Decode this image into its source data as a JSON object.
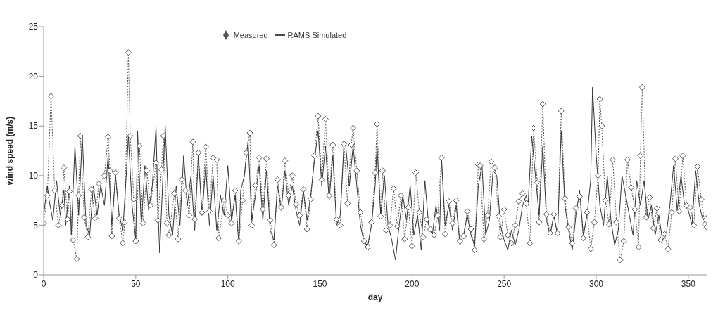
{
  "chart_data": {
    "type": "line",
    "xlabel": "day",
    "ylabel": "wind speed (m/s)",
    "xlim": [
      0,
      360
    ],
    "xticks": [
      0,
      50,
      100,
      150,
      200,
      250,
      300,
      350
    ],
    "ylim": [
      0,
      25
    ],
    "yticks": [
      0,
      5,
      10,
      15,
      20,
      25
    ],
    "grid": false,
    "legend": "top",
    "series": [
      {
        "name": "Measured",
        "color": "#555555",
        "marker": "diamond",
        "line_style": "dotted",
        "x": [
          0,
          2,
          4,
          6,
          8,
          10,
          11,
          13,
          14,
          16,
          18,
          19,
          20,
          22,
          24,
          26,
          28,
          30,
          33,
          35,
          36,
          37,
          39,
          41,
          43,
          44,
          46,
          47,
          49,
          50,
          52,
          54,
          56,
          58,
          61,
          62,
          64,
          65,
          67,
          68,
          71,
          73,
          75,
          77,
          79,
          81,
          82,
          84,
          86,
          88,
          90,
          92,
          94,
          95,
          98,
          100,
          102,
          104,
          106,
          108,
          110,
          112,
          113,
          115,
          117,
          119,
          121,
          123,
          125,
          127,
          129,
          131,
          133,
          135,
          137,
          139,
          141,
          143,
          145,
          147,
          149,
          151,
          153,
          155,
          157,
          159,
          161,
          163,
          165,
          167,
          168,
          170,
          172,
          174,
          176,
          178,
          180,
          181,
          183,
          184,
          186,
          188,
          190,
          192,
          194,
          196,
          198,
          200,
          202,
          204,
          206,
          208,
          210,
          212,
          214,
          216,
          218,
          220,
          222,
          224,
          226,
          228,
          230,
          232,
          234,
          236,
          237,
          239,
          241,
          243,
          245,
          247,
          248,
          250,
          252,
          254,
          256,
          258,
          260,
          262,
          264,
          266,
          268,
          269,
          271,
          273,
          275,
          277,
          279,
          281,
          283,
          285,
          287,
          289,
          291,
          293,
          295,
          297,
          299,
          301,
          302,
          303,
          305,
          307,
          309,
          311,
          313,
          315,
          317,
          319,
          321,
          323,
          324,
          325,
          327,
          329,
          331,
          333,
          335,
          337,
          339,
          341,
          343,
          345,
          347,
          349,
          351,
          353,
          355,
          357,
          359,
          360
        ],
        "values": [
          5.2,
          8,
          18,
          8.5,
          5,
          7,
          10.8,
          5.6,
          8.4,
          3.5,
          1.6,
          8,
          14,
          5.8,
          3.8,
          8.6,
          5.7,
          9.2,
          10,
          13.9,
          10.5,
          3.9,
          10.3,
          5.7,
          3.2,
          5.3,
          22.4,
          14,
          7.6,
          3.4,
          13,
          5.2,
          10.5,
          7,
          11.3,
          5.5,
          10.6,
          14,
          5.2,
          4,
          8.2,
          3.6,
          9.6,
          8.5,
          6,
          13.4,
          5.6,
          12.3,
          6.3,
          12.9,
          6.4,
          11.8,
          11.6,
          3.7,
          7.5,
          6,
          5.2,
          8.5,
          3.4,
          7.5,
          12.3,
          14.3,
          5,
          9,
          11.8,
          6.6,
          11.7,
          5.5,
          3,
          9.6,
          6.8,
          11.5,
          8,
          10,
          7.1,
          6,
          8.6,
          4.6,
          7.6,
          12,
          16,
          9.6,
          15.7,
          8,
          13.1,
          5.6,
          5,
          13.2,
          7.2,
          13.1,
          14.8,
          10.5,
          6.3,
          3.4,
          2.8,
          5.3,
          10.3,
          15.2,
          5.9,
          10.5,
          4.5,
          5,
          8.7,
          4.9,
          8,
          3.6,
          6.8,
          2.9,
          10.3,
          6.3,
          3.8,
          5.6,
          4.6,
          4,
          6,
          11.8,
          4.1,
          7.4,
          5.2,
          7.5,
          3.4,
          3.9,
          6.4,
          4.6,
          2.5,
          11.1,
          11,
          3.6,
          6,
          11.4,
          10.8,
          5.9,
          3.8,
          6.6,
          4,
          3.2,
          5,
          7.4,
          8.2,
          7.2,
          3.2,
          14.8,
          9.3,
          5.3,
          17.2,
          6.1,
          4.2,
          6.1,
          4.2,
          16.5,
          7.7,
          4.8,
          3.2,
          6.7,
          7.9,
          3.7,
          6.3,
          2.6,
          5.3,
          10,
          17.7,
          15,
          7.5,
          5.1,
          11.6,
          5.3,
          1.5,
          3.4,
          11.6,
          8.8,
          6.6,
          2.8,
          12,
          18.9,
          5.8,
          7.8,
          4.7,
          6.7,
          3.5,
          4.1,
          2.6,
          6.3,
          11.7,
          6.4,
          12,
          7,
          6.8,
          5,
          10.9,
          7.6,
          5.1,
          4.8
        ]
      },
      {
        "name": "RAMS Simulated",
        "color": "#333333",
        "marker": "none",
        "line_style": "solid",
        "x": [
          0,
          2,
          3,
          5,
          7,
          9,
          11,
          12,
          14,
          15,
          17,
          18,
          19,
          21,
          23,
          25,
          27,
          29,
          31,
          33,
          35,
          37,
          39,
          41,
          43,
          45,
          46,
          48,
          50,
          51,
          53,
          55,
          57,
          59,
          61,
          62,
          63,
          65,
          66,
          68,
          70,
          72,
          74,
          76,
          78,
          80,
          82,
          84,
          86,
          88,
          90,
          92,
          94,
          96,
          98,
          100,
          102,
          104,
          106,
          107,
          109,
          111,
          113,
          115,
          117,
          119,
          121,
          123,
          125,
          127,
          129,
          131,
          133,
          135,
          137,
          139,
          141,
          143,
          145,
          147,
          149,
          151,
          153,
          155,
          157,
          159,
          161,
          163,
          164,
          166,
          168,
          170,
          172,
          174,
          176,
          178,
          180,
          181,
          183,
          185,
          187,
          189,
          191,
          193,
          195,
          197,
          199,
          201,
          203,
          205,
          207,
          209,
          211,
          213,
          215,
          216,
          218,
          220,
          222,
          224,
          226,
          228,
          230,
          232,
          234,
          236,
          238,
          240,
          242,
          244,
          246,
          248,
          250,
          252,
          254,
          256,
          258,
          260,
          262,
          263,
          265,
          267,
          269,
          271,
          273,
          275,
          277,
          279,
          281,
          283,
          285,
          287,
          289,
          291,
          293,
          295,
          297,
          298,
          300,
          302,
          304,
          306,
          308,
          310,
          312,
          314,
          316,
          318,
          320,
          322,
          324,
          326,
          328,
          330,
          332,
          334,
          336,
          338,
          340,
          342,
          344,
          346,
          348,
          350,
          352,
          354,
          356,
          358,
          360
        ],
        "values": [
          6,
          9,
          7.5,
          5.5,
          9.5,
          6,
          8.5,
          5,
          9,
          4,
          13,
          9.5,
          6,
          14,
          5,
          4,
          9,
          6,
          9,
          7,
          12,
          5,
          10,
          6,
          4.5,
          10.5,
          14,
          7,
          3.5,
          14.5,
          5,
          11,
          6.5,
          9,
          14.9,
          7,
          2.2,
          11,
          15,
          6,
          4,
          9,
          5,
          12,
          7,
          10,
          4.5,
          12,
          6,
          11,
          5,
          10,
          4.5,
          8,
          6,
          11,
          5.5,
          8,
          3,
          8.5,
          10,
          13.5,
          5.5,
          8,
          11,
          5.5,
          10.5,
          4.5,
          3.5,
          9,
          6.5,
          10.5,
          7,
          9,
          6.5,
          5,
          8.5,
          5.5,
          8,
          11.5,
          14.5,
          9,
          13,
          7.5,
          12,
          5,
          6,
          13,
          13,
          9,
          13,
          9,
          5,
          3.2,
          3,
          5,
          9,
          13,
          6,
          10,
          5,
          3.5,
          1.5,
          5,
          8,
          5.5,
          9,
          4,
          6,
          2.5,
          9.5,
          5,
          4,
          7,
          4.5,
          11.8,
          5,
          7,
          4.5,
          7,
          3,
          4,
          6,
          4,
          3,
          9,
          11,
          4,
          5.5,
          10.5,
          10,
          5,
          3.5,
          2.5,
          4.5,
          3,
          4.5,
          7,
          8,
          7,
          14,
          10,
          6,
          13,
          5.5,
          4,
          6,
          4,
          14.5,
          7,
          4.5,
          2.5,
          6,
          8.5,
          4,
          6,
          9.5,
          18.9,
          12,
          7,
          5,
          10,
          5.5,
          3,
          4.5,
          10,
          8,
          6,
          4,
          9.5,
          7,
          9.5,
          5.5,
          7,
          4,
          6,
          3.5,
          4,
          7,
          11,
          6.5,
          10,
          7,
          6.5,
          5,
          10.5,
          7,
          5.5,
          6
        ]
      }
    ]
  }
}
